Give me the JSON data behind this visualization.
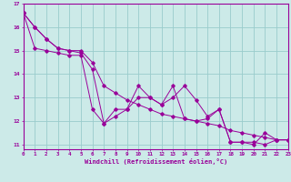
{
  "xlabel": "Windchill (Refroidissement éolien,°C)",
  "background_color": "#cceae8",
  "grid_color": "#99cccc",
  "line_color": "#990099",
  "x_values": [
    0,
    1,
    2,
    3,
    4,
    5,
    6,
    7,
    8,
    9,
    10,
    11,
    12,
    13,
    14,
    15,
    16,
    17,
    18,
    19,
    20,
    21,
    22,
    23
  ],
  "series1": [
    16.6,
    16.0,
    15.5,
    15.1,
    15.0,
    14.9,
    14.2,
    11.9,
    12.2,
    12.5,
    13.5,
    13.0,
    12.7,
    13.5,
    12.1,
    12.0,
    12.1,
    12.5,
    11.1,
    11.1,
    11.0,
    11.5,
    11.2,
    11.2
  ],
  "series2": [
    16.6,
    16.0,
    15.5,
    15.1,
    15.0,
    15.0,
    14.5,
    13.5,
    13.2,
    12.9,
    12.7,
    12.5,
    12.3,
    12.2,
    12.1,
    12.0,
    11.9,
    11.8,
    11.6,
    11.5,
    11.4,
    11.3,
    11.2,
    11.2
  ],
  "series3": [
    16.6,
    15.1,
    15.0,
    14.9,
    14.8,
    14.8,
    12.5,
    11.9,
    12.5,
    12.5,
    13.0,
    13.0,
    12.7,
    13.0,
    13.5,
    12.9,
    12.2,
    12.5,
    11.1,
    11.1,
    11.1,
    11.0,
    11.2,
    11.2
  ],
  "xlim": [
    0,
    23
  ],
  "ylim": [
    10.8,
    17.0
  ],
  "yticks": [
    11,
    12,
    13,
    14,
    15,
    16,
    17
  ],
  "xticks": [
    0,
    1,
    2,
    3,
    4,
    5,
    6,
    7,
    8,
    9,
    10,
    11,
    12,
    13,
    14,
    15,
    16,
    17,
    18,
    19,
    20,
    21,
    22,
    23
  ]
}
